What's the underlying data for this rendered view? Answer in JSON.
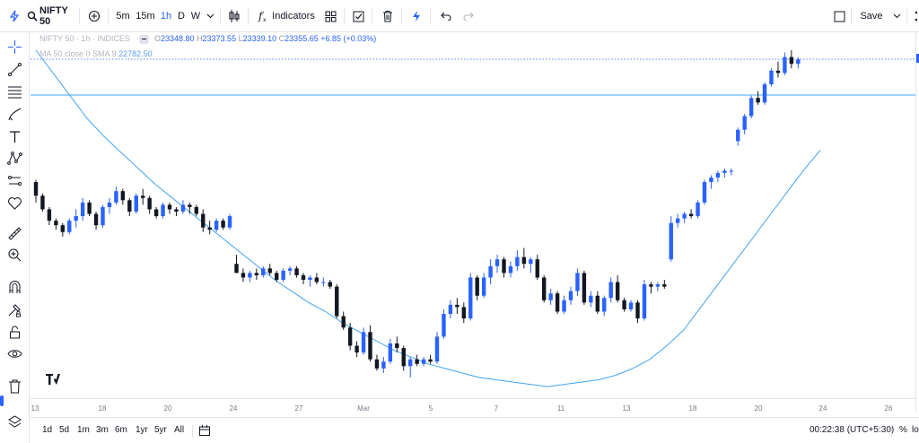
{
  "topbar": {
    "symbol": "NIFTY 50",
    "intervals": [
      "5m",
      "15m",
      "1h",
      "D",
      "W"
    ],
    "active_interval": "1h",
    "indicators_label": "Indicators",
    "save_label": "Save"
  },
  "legend": {
    "symbol": "NIFTY 50",
    "interval": "1h",
    "exchange": "INDICES",
    "open_label": "O",
    "open": "23348.80",
    "high_label": "H",
    "high": "23373.55",
    "low_label": "L",
    "low": "23339.10",
    "close_label": "C",
    "close": "23355.65",
    "change": "+6.85 (+0.03%)",
    "ma_label": "MA 50 close 0 SMA 9",
    "ma_value": "22782.50"
  },
  "xaxis": {
    "ticks": [
      "18",
      "20",
      "24",
      "27",
      "Mar",
      "5",
      "7",
      "11",
      "13",
      "18",
      "20",
      "24",
      "26"
    ]
  },
  "bottombar": {
    "ranges": [
      "1d",
      "5d",
      "1m",
      "3m",
      "6m",
      "1yr",
      "5yr",
      "All"
    ],
    "clock": "00:22:38 (UTC+5:30)",
    "percent_label": "%",
    "log_label": "lo"
  },
  "colors": {
    "up": "#2962ff",
    "down": "#131722",
    "ma_line": "#42a5f5",
    "accent": "#2962ff"
  },
  "chart_data": {
    "type": "candlestick",
    "series": [
      {
        "name": "NIFTY 50"
      },
      {
        "name": "MA 50 close 0 SMA 9"
      }
    ],
    "x_tick_labels": [
      "18",
      "20",
      "24",
      "27",
      "Mar",
      "5",
      "7",
      "11",
      "13",
      "18",
      "20",
      "24",
      "26"
    ],
    "ohlc_shape": [
      [
        100,
        101,
        91,
        94
      ],
      [
        94,
        95,
        87,
        88
      ],
      [
        88,
        89,
        81,
        83
      ],
      [
        83,
        84,
        79,
        81
      ],
      [
        81,
        82,
        76,
        78
      ],
      [
        78,
        84,
        77,
        83
      ],
      [
        83,
        88,
        80,
        85
      ],
      [
        85,
        93,
        83,
        91
      ],
      [
        91,
        92,
        85,
        86
      ],
      [
        86,
        87,
        79,
        81
      ],
      [
        81,
        90,
        80,
        89
      ],
      [
        89,
        93,
        86,
        91
      ],
      [
        91,
        98,
        90,
        96
      ],
      [
        96,
        97,
        90,
        92
      ],
      [
        92,
        93,
        85,
        87
      ],
      [
        87,
        95,
        86,
        94
      ],
      [
        94,
        97,
        90,
        93
      ],
      [
        93,
        94,
        86,
        88
      ],
      [
        88,
        89,
        84,
        85
      ],
      [
        85,
        91,
        84,
        90
      ],
      [
        90,
        91,
        86,
        88
      ],
      [
        88,
        89,
        85,
        87
      ],
      [
        87,
        92,
        86,
        90
      ],
      [
        90,
        91,
        86,
        89
      ],
      [
        89,
        90,
        85,
        86
      ],
      [
        86,
        88,
        78,
        80
      ],
      [
        80,
        83,
        77,
        79
      ],
      [
        79,
        84,
        78,
        83
      ],
      [
        83,
        84,
        79,
        80
      ],
      [
        80,
        86,
        79,
        85
      ],
      [
        64,
        68,
        60,
        60
      ],
      [
        60,
        62,
        56,
        58
      ],
      [
        58,
        61,
        56,
        60
      ],
      [
        60,
        62,
        57,
        59
      ],
      [
        59,
        63,
        58,
        62
      ],
      [
        62,
        64,
        59,
        60
      ],
      [
        60,
        61,
        56,
        57
      ],
      [
        57,
        62,
        56,
        61
      ],
      [
        61,
        63,
        59,
        62
      ],
      [
        62,
        63,
        58,
        59
      ],
      [
        59,
        60,
        55,
        57
      ],
      [
        57,
        59,
        54,
        58
      ],
      [
        58,
        60,
        55,
        56
      ],
      [
        56,
        58,
        54,
        56
      ],
      [
        56,
        57,
        53,
        54
      ],
      [
        54,
        55,
        40,
        41
      ],
      [
        41,
        43,
        35,
        36
      ],
      [
        36,
        38,
        26,
        28
      ],
      [
        28,
        30,
        23,
        25
      ],
      [
        25,
        36,
        24,
        34
      ],
      [
        34,
        37,
        21,
        22
      ],
      [
        22,
        24,
        17,
        18
      ],
      [
        18,
        23,
        16,
        21
      ],
      [
        21,
        31,
        20,
        29
      ],
      [
        29,
        32,
        25,
        27
      ],
      [
        27,
        28,
        17,
        19
      ],
      [
        19,
        23,
        14,
        22
      ],
      [
        22,
        24,
        19,
        20
      ],
      [
        20,
        23,
        19,
        22
      ],
      [
        22,
        24,
        20,
        21
      ],
      [
        21,
        34,
        20,
        32
      ],
      [
        32,
        44,
        31,
        42
      ],
      [
        42,
        48,
        40,
        46
      ],
      [
        46,
        49,
        42,
        45
      ],
      [
        45,
        47,
        38,
        40
      ],
      [
        40,
        60,
        39,
        58
      ],
      [
        58,
        59,
        48,
        50
      ],
      [
        50,
        60,
        49,
        58
      ],
      [
        58,
        66,
        55,
        63
      ],
      [
        63,
        68,
        60,
        66
      ],
      [
        66,
        67,
        58,
        60
      ],
      [
        60,
        65,
        58,
        63
      ],
      [
        63,
        70,
        61,
        67
      ],
      [
        67,
        71,
        62,
        64
      ],
      [
        64,
        67,
        60,
        66
      ],
      [
        66,
        68,
        57,
        58
      ],
      [
        58,
        59,
        47,
        48
      ],
      [
        48,
        53,
        46,
        51
      ],
      [
        51,
        52,
        42,
        43
      ],
      [
        43,
        50,
        42,
        48
      ],
      [
        48,
        54,
        46,
        52
      ],
      [
        52,
        62,
        50,
        60
      ],
      [
        60,
        61,
        46,
        47
      ],
      [
        47,
        52,
        45,
        50
      ],
      [
        50,
        52,
        42,
        43
      ],
      [
        43,
        50,
        41,
        49
      ],
      [
        49,
        58,
        47,
        56
      ],
      [
        56,
        59,
        47,
        48
      ],
      [
        48,
        49,
        43,
        44
      ],
      [
        44,
        48,
        43,
        47
      ],
      [
        47,
        48,
        38,
        40
      ],
      [
        40,
        57,
        39,
        55
      ],
      [
        55,
        56,
        51,
        54
      ],
      [
        54,
        56,
        52,
        55
      ],
      [
        55,
        57,
        53,
        54
      ],
      [
        66,
        85,
        65,
        82
      ],
      [
        82,
        86,
        80,
        84
      ],
      [
        84,
        87,
        82,
        86
      ],
      [
        86,
        88,
        84,
        85
      ],
      [
        85,
        92,
        84,
        91
      ],
      [
        91,
        101,
        90,
        100
      ],
      [
        100,
        103,
        97,
        102
      ],
      [
        102,
        105,
        100,
        104
      ],
      [
        104,
        106,
        102,
        105
      ],
      [
        105,
        106,
        103,
        105
      ],
      [
        118,
        124,
        116,
        123
      ],
      [
        123,
        130,
        121,
        129
      ],
      [
        129,
        138,
        128,
        137
      ],
      [
        137,
        140,
        134,
        135
      ],
      [
        135,
        144,
        134,
        143
      ],
      [
        143,
        150,
        142,
        149
      ],
      [
        149,
        153,
        146,
        148
      ],
      [
        148,
        157,
        147,
        155
      ],
      [
        155,
        158,
        150,
        152
      ],
      [
        152,
        155,
        150,
        154
      ]
    ],
    "ma_shape": [
      158,
      148,
      138,
      128,
      120,
      113,
      106,
      99,
      93,
      87,
      81,
      75,
      69,
      63,
      57,
      52,
      47,
      43,
      38,
      34,
      30,
      26,
      23,
      20,
      18,
      16,
      14,
      13,
      12,
      11,
      10,
      11,
      12,
      13,
      15,
      18,
      22,
      28,
      35,
      45,
      55,
      65,
      75,
      85,
      95,
      105,
      114
    ],
    "price_lines": [
      {
        "value": "23355.65",
        "style": "dotted"
      },
      {
        "value": "22782.50",
        "style": "solid"
      }
    ],
    "grid": false,
    "legend_placement": "top-left"
  }
}
